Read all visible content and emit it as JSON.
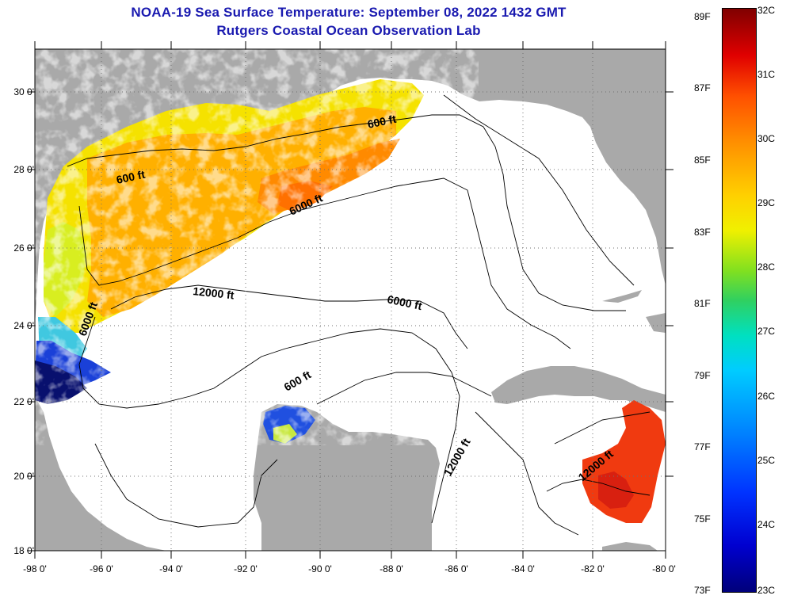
{
  "header": {
    "title": "NOAA-19 Sea Surface Temperature:  September 08, 2022 1432 GMT",
    "subtitle": "Rutgers Coastal Ocean Observation Lab"
  },
  "axes": {
    "lat_labels": [
      "30 0'",
      "28 0'",
      "26 0'",
      "24 0'",
      "22 0'",
      "20 0'",
      "18 0'"
    ],
    "lon_labels": [
      "-98 0'",
      "-96 0'",
      "-94 0'",
      "-92 0'",
      "-90 0'",
      "-88 0'",
      "-86 0'",
      "-84 0'",
      "-82 0'",
      "-80 0'"
    ]
  },
  "contour_labels": {
    "a": "600 ft",
    "b": "600 ft",
    "c": "6000 ft",
    "d": "12000 ft",
    "e": "6000 ft",
    "f": "6000 ft",
    "g": "600 ft",
    "h": "12000 ft",
    "i": "12000 ft"
  },
  "colorbar": {
    "fahrenheit": [
      "89F",
      "87F",
      "85F",
      "83F",
      "81F",
      "79F",
      "77F",
      "75F",
      "73F"
    ],
    "celsius": [
      "32C",
      "31C",
      "30C",
      "29C",
      "28C",
      "27C",
      "26C",
      "25C",
      "24C",
      "23C"
    ]
  },
  "colors": {
    "land": "#a9a9a9",
    "title_blue": "#1a1ab0"
  }
}
